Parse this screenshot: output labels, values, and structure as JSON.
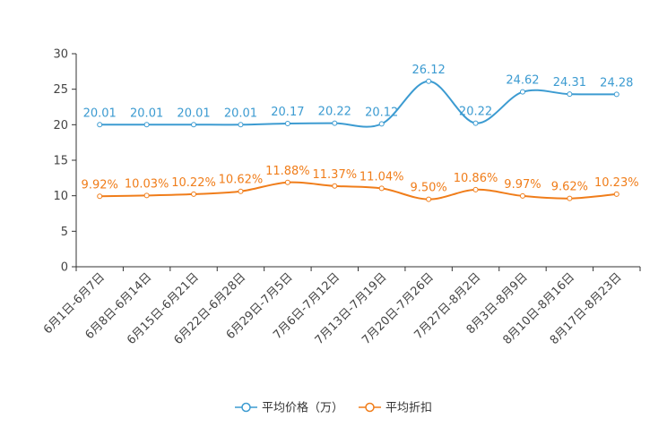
{
  "chart_data": {
    "type": "line",
    "title": "",
    "xlabel": "",
    "ylabel": "",
    "ylim": [
      0,
      30
    ],
    "yticks": [
      0,
      5,
      10,
      15,
      20,
      25,
      30
    ],
    "yticks_text": [
      "0",
      "5",
      "10",
      "15",
      "20",
      "25",
      "30"
    ],
    "grid": false,
    "legend_position": "bottom-center",
    "categories": [
      "6月1日-6月7日",
      "6月8日-6月14日",
      "6月15日-6月21日",
      "6月22日-6月28日",
      "6月29日-7月5日",
      "7月6日-7月12日",
      "7月13日-7月19日",
      "7月20日-7月26日",
      "7月27日-8月2日",
      "8月3日-8月9日",
      "8月10日-8月16日",
      "8月17日-8月23日"
    ],
    "series": [
      {
        "name": "平均价格（万）",
        "color": "#3c9bd1",
        "values": [
          20.01,
          20.01,
          20.01,
          20.01,
          20.17,
          20.22,
          20.12,
          26.12,
          20.22,
          24.62,
          24.31,
          24.28
        ],
        "labels": [
          "20.01",
          "20.01",
          "20.01",
          "20.01",
          "20.17",
          "20.22",
          "20.12",
          "26.12",
          "20.22",
          "24.62",
          "24.31",
          "24.28"
        ]
      },
      {
        "name": "平均折扣",
        "color": "#f07d1a",
        "values": [
          9.92,
          10.03,
          10.22,
          10.62,
          11.88,
          11.37,
          11.04,
          9.5,
          10.86,
          9.97,
          9.62,
          10.23
        ],
        "labels": [
          "9.92%",
          "10.03%",
          "10.22%",
          "10.62%",
          "11.88%",
          "11.37%",
          "11.04%",
          "9.50%",
          "10.86%",
          "9.97%",
          "9.62%",
          "10.23%"
        ]
      }
    ]
  }
}
